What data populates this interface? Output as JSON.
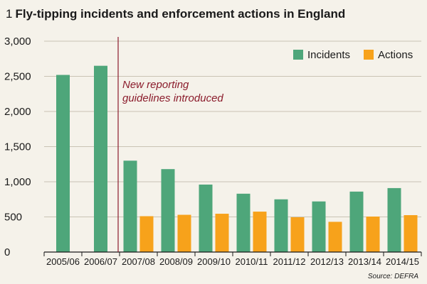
{
  "chart_data": {
    "type": "bar",
    "title_number": "1",
    "title": "Fly-tipping incidents and enforcement actions in England",
    "categories": [
      "2005/06",
      "2006/07",
      "2007/08",
      "2008/09",
      "2009/10",
      "2010/11",
      "2011/12",
      "2012/13",
      "2013/14",
      "2014/15"
    ],
    "series": [
      {
        "name": "Incidents",
        "color": "#4ea67a",
        "values": [
          2520,
          2650,
          1300,
          1180,
          960,
          830,
          750,
          720,
          860,
          910
        ]
      },
      {
        "name": "Actions",
        "color": "#f7a21b",
        "values": [
          null,
          null,
          510,
          530,
          545,
          575,
          495,
          430,
          505,
          525
        ]
      }
    ],
    "ylim": [
      0,
      3000
    ],
    "yticks": [
      0,
      500,
      1000,
      1500,
      2000,
      2500,
      3000
    ],
    "ytick_labels": [
      "0",
      "500",
      "1,000",
      "1,500",
      "2,000",
      "2,500",
      "3,000"
    ],
    "grid": true,
    "legend_position": "top-right",
    "annotation": {
      "lines": [
        "New reporting",
        "guidelines introduced"
      ],
      "color": "#8b1c2c",
      "at_category": "2007/08"
    },
    "source": "Source: DEFRA"
  }
}
